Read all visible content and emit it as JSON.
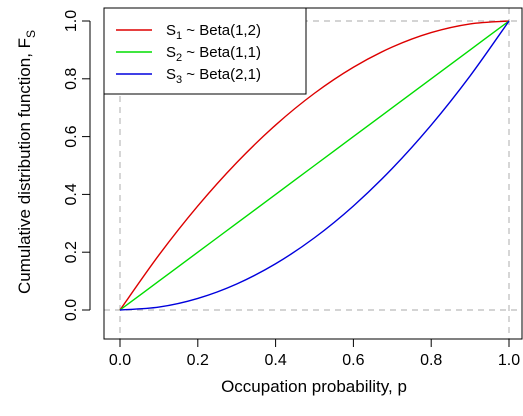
{
  "chart_data": {
    "type": "line",
    "xlabel": "Occupation probability, p",
    "ylabel": {
      "main": "Cumulative distribution function, F",
      "sub": "S"
    },
    "xlim": [
      -0.04,
      1.04
    ],
    "ylim": [
      -0.04,
      1.04
    ],
    "xticks": [
      "0.0",
      "0.2",
      "0.4",
      "0.6",
      "0.8",
      "1.0"
    ],
    "yticks": [
      "0.0",
      "0.2",
      "0.4",
      "0.6",
      "0.8",
      "1.0"
    ],
    "reference_lines": {
      "x": [
        0,
        1
      ],
      "y": [
        0,
        1
      ],
      "style": "dashed",
      "color": "#bbbbbb"
    },
    "legend": {
      "position": "top-left"
    },
    "series": [
      {
        "name": {
          "pre": "S",
          "sub": "1",
          "post": " ~ Beta(1,2)"
        },
        "color": "#dd0000",
        "x": [
          0,
          0.1,
          0.2,
          0.3,
          0.4,
          0.5,
          0.6,
          0.7,
          0.8,
          0.9,
          1.0
        ],
        "y": [
          0,
          0.19,
          0.36,
          0.51,
          0.64,
          0.75,
          0.84,
          0.91,
          0.96,
          0.99,
          1.0
        ]
      },
      {
        "name": {
          "pre": "S",
          "sub": "2",
          "post": " ~ Beta(1,1)"
        },
        "color": "#00dd00",
        "x": [
          0,
          0.1,
          0.2,
          0.3,
          0.4,
          0.5,
          0.6,
          0.7,
          0.8,
          0.9,
          1.0
        ],
        "y": [
          0,
          0.1,
          0.2,
          0.3,
          0.4,
          0.5,
          0.6,
          0.7,
          0.8,
          0.9,
          1.0
        ]
      },
      {
        "name": {
          "pre": "S",
          "sub": "3",
          "post": " ~ Beta(2,1)"
        },
        "color": "#0000dd",
        "x": [
          0,
          0.1,
          0.2,
          0.3,
          0.4,
          0.5,
          0.6,
          0.7,
          0.8,
          0.9,
          1.0
        ],
        "y": [
          0,
          0.01,
          0.04,
          0.09,
          0.16,
          0.25,
          0.36,
          0.49,
          0.64,
          0.81,
          1.0
        ]
      }
    ]
  }
}
